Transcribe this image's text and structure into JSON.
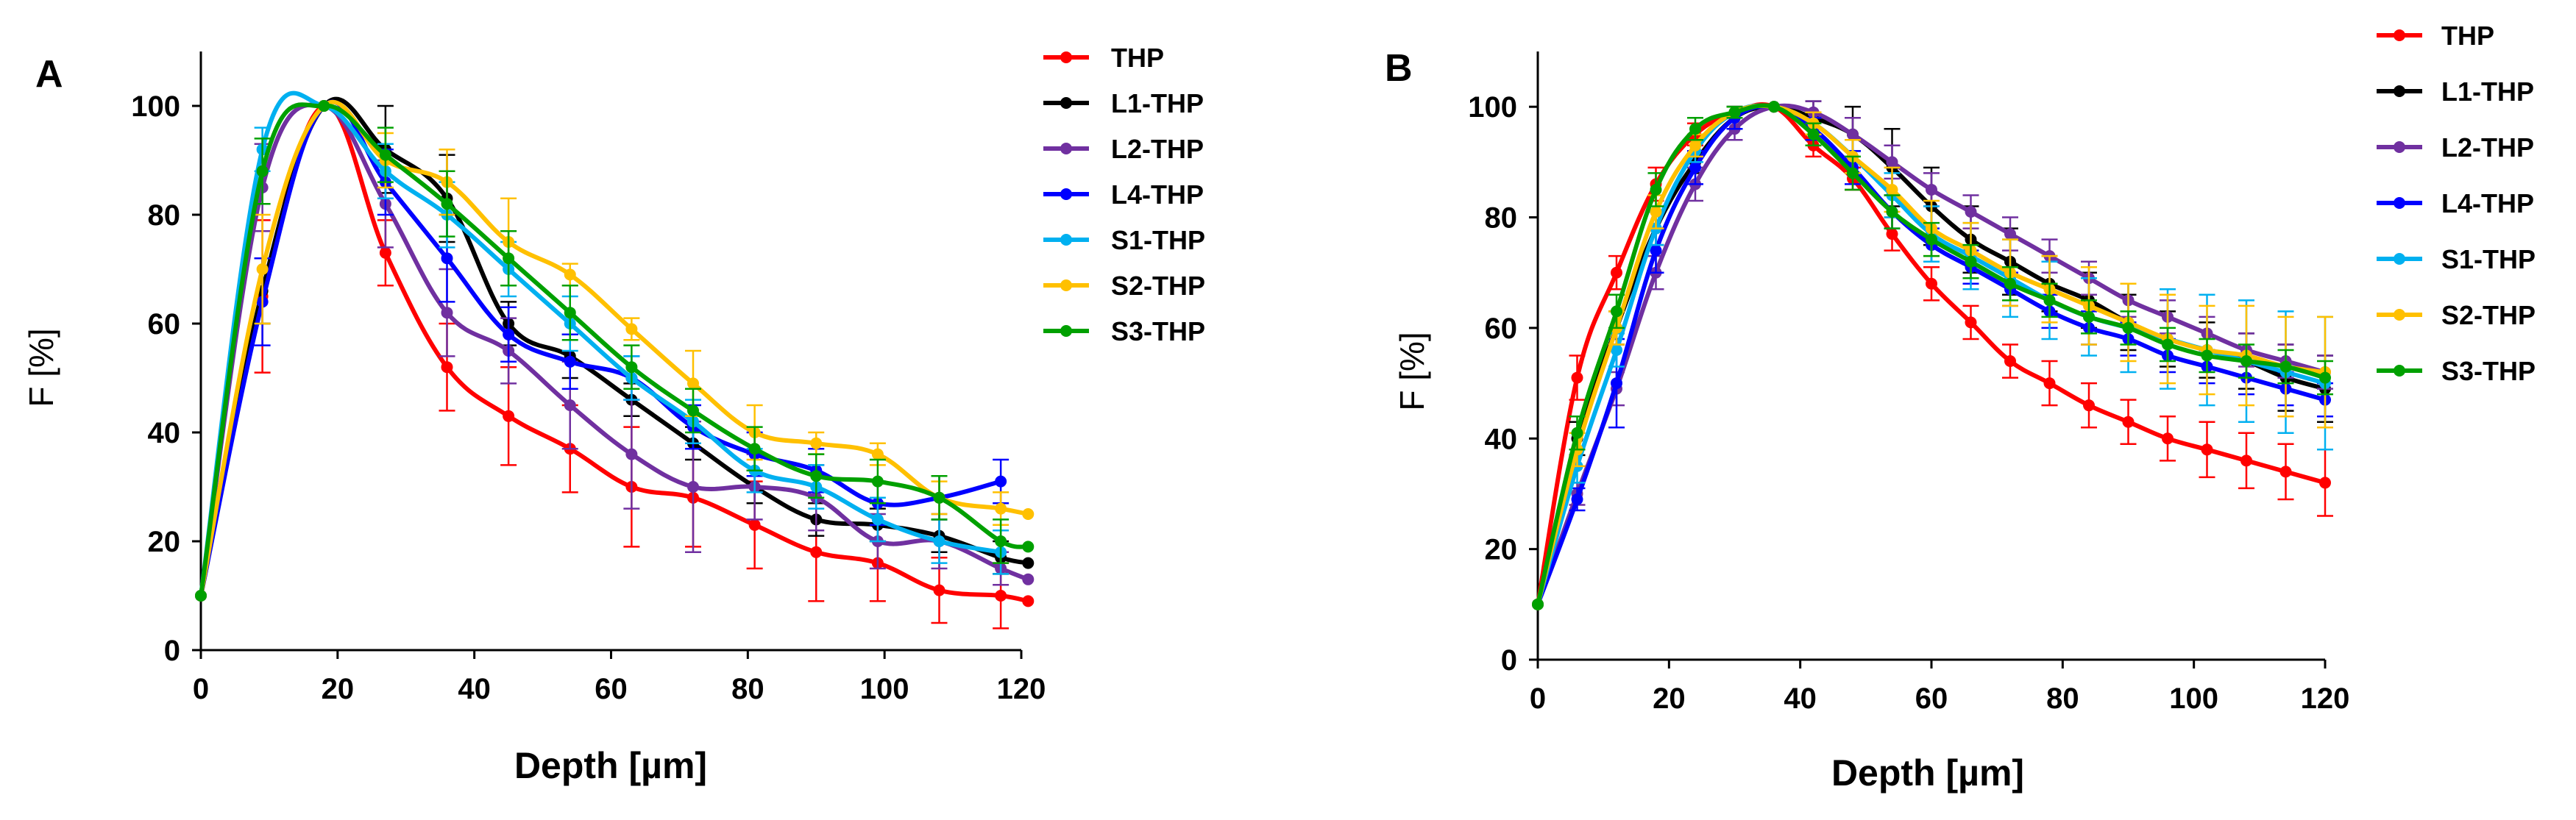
{
  "chart_data": [
    {
      "type": "line",
      "panel_label": "A",
      "xlabel": "Depth [µm]",
      "ylabel": "F [%]",
      "xlim": [
        0,
        120
      ],
      "ylim": [
        0,
        110
      ],
      "x_ticks": [
        "0",
        "20",
        "40",
        "60",
        "80",
        "100",
        "120"
      ],
      "y_ticks": [
        "0",
        "20",
        "40",
        "60",
        "80",
        "100"
      ],
      "grid": false,
      "legend_position": "right",
      "series": [
        {
          "name": "THP",
          "color": "#ff0000",
          "x": [
            0,
            9,
            18,
            27,
            36,
            45,
            54,
            63,
            72,
            81,
            90,
            99,
            108,
            117,
            121
          ],
          "y": [
            10,
            65,
            100,
            73,
            52,
            43,
            37,
            30,
            28,
            23,
            18,
            16,
            11,
            10,
            9
          ],
          "err": [
            0,
            14,
            0,
            6,
            8,
            9,
            8,
            11,
            9,
            8,
            9,
            7,
            6,
            6,
            0
          ]
        },
        {
          "name": "L1-THP",
          "color": "#000000",
          "x": [
            0,
            9,
            18,
            27,
            36,
            45,
            54,
            63,
            72,
            81,
            90,
            99,
            108,
            117,
            121
          ],
          "y": [
            10,
            66,
            100,
            92,
            83,
            60,
            54,
            46,
            38,
            30,
            24,
            23,
            21,
            17,
            16
          ],
          "err": [
            0,
            6,
            0,
            8,
            8,
            4,
            4,
            3,
            3,
            3,
            3,
            3,
            3,
            3,
            0
          ]
        },
        {
          "name": "L2-THP",
          "color": "#7030a0",
          "x": [
            0,
            9,
            18,
            27,
            36,
            45,
            54,
            63,
            72,
            81,
            90,
            99,
            108,
            117,
            121
          ],
          "y": [
            10,
            85,
            100,
            82,
            62,
            55,
            45,
            36,
            30,
            30,
            28,
            20,
            20,
            15,
            13
          ],
          "err": [
            0,
            8,
            0,
            8,
            8,
            6,
            8,
            10,
            12,
            6,
            6,
            5,
            5,
            3,
            0
          ]
        },
        {
          "name": "L4-THP",
          "color": "#0000ff",
          "x": [
            0,
            9,
            18,
            27,
            36,
            45,
            54,
            63,
            72,
            81,
            90,
            99,
            108,
            117
          ],
          "y": [
            10,
            64,
            100,
            86,
            72,
            58,
            53,
            50,
            41,
            36,
            33,
            27,
            28,
            31
          ],
          "err": [
            0,
            8,
            0,
            6,
            8,
            5,
            5,
            4,
            4,
            4,
            4,
            4,
            4,
            4
          ]
        },
        {
          "name": "S1-THP",
          "color": "#00b0f0",
          "x": [
            0,
            9,
            18,
            27,
            36,
            45,
            54,
            63,
            72,
            81,
            90,
            99,
            108,
            117
          ],
          "y": [
            10,
            92,
            100,
            88,
            80,
            70,
            60,
            50,
            42,
            33,
            30,
            24,
            20,
            18
          ],
          "err": [
            0,
            4,
            0,
            5,
            6,
            5,
            5,
            4,
            4,
            4,
            4,
            4,
            4,
            4
          ]
        },
        {
          "name": "S2-THP",
          "color": "#ffc000",
          "x": [
            0,
            9,
            18,
            27,
            36,
            45,
            54,
            63,
            72,
            81,
            90,
            99,
            108,
            117,
            121
          ],
          "y": [
            10,
            70,
            100,
            90,
            86,
            75,
            69,
            59,
            49,
            40,
            38,
            36,
            28,
            26,
            25
          ],
          "err": [
            0,
            10,
            0,
            5,
            6,
            8,
            2,
            2,
            6,
            5,
            2,
            2,
            3,
            3,
            0
          ]
        },
        {
          "name": "S3-THP",
          "color": "#00a000",
          "x": [
            0,
            9,
            18,
            27,
            36,
            45,
            54,
            63,
            72,
            81,
            90,
            99,
            108,
            117,
            121
          ],
          "y": [
            10,
            88,
            100,
            91,
            82,
            72,
            62,
            52,
            44,
            37,
            32,
            31,
            28,
            20,
            19
          ],
          "err": [
            0,
            6,
            0,
            5,
            6,
            5,
            5,
            4,
            4,
            4,
            4,
            4,
            4,
            4,
            0
          ]
        }
      ]
    },
    {
      "type": "line",
      "panel_label": "B",
      "xlabel": "Depth [µm]",
      "ylabel": "F [%]",
      "xlim": [
        0,
        120
      ],
      "ylim": [
        0,
        110
      ],
      "x_ticks": [
        "0",
        "20",
        "40",
        "60",
        "80",
        "100",
        "120"
      ],
      "y_ticks": [
        "0",
        "20",
        "40",
        "60",
        "80",
        "100"
      ],
      "grid": false,
      "legend_position": "right",
      "series": [
        {
          "name": "THP",
          "color": "#ff0000",
          "x": [
            0,
            6,
            12,
            18,
            24,
            30,
            36,
            42,
            48,
            54,
            60,
            66,
            72,
            78,
            84,
            90,
            96,
            102,
            108,
            114,
            120
          ],
          "y": [
            10,
            51,
            70,
            86,
            95,
            99,
            100,
            93,
            87,
            77,
            68,
            61,
            54,
            50,
            46,
            43,
            40,
            38,
            36,
            34,
            32
          ],
          "err": [
            0,
            4,
            3,
            3,
            2,
            1,
            0,
            2,
            2,
            3,
            3,
            3,
            3,
            4,
            4,
            4,
            4,
            5,
            5,
            5,
            6
          ]
        },
        {
          "name": "L1-THP",
          "color": "#000000",
          "x": [
            0,
            6,
            12,
            18,
            24,
            30,
            36,
            42,
            48,
            54,
            60,
            66,
            72,
            78,
            84,
            90,
            96,
            102,
            108,
            114,
            120
          ],
          "y": [
            10,
            40,
            60,
            78,
            90,
            98,
            100,
            98,
            95,
            89,
            82,
            76,
            72,
            68,
            65,
            61,
            58,
            56,
            54,
            51,
            49
          ],
          "err": [
            0,
            3,
            3,
            3,
            2,
            2,
            0,
            3,
            5,
            7,
            7,
            6,
            6,
            5,
            5,
            5,
            5,
            5,
            5,
            6,
            6
          ]
        },
        {
          "name": "L2-THP",
          "color": "#7030a0",
          "x": [
            0,
            6,
            12,
            18,
            24,
            30,
            36,
            42,
            48,
            54,
            60,
            66,
            72,
            78,
            84,
            90,
            96,
            102,
            108,
            114,
            120
          ],
          "y": [
            10,
            30,
            49,
            70,
            86,
            96,
            100,
            99,
            95,
            90,
            85,
            81,
            77,
            73,
            69,
            65,
            62,
            59,
            56,
            54,
            52
          ],
          "err": [
            0,
            2,
            3,
            3,
            3,
            2,
            0,
            2,
            3,
            3,
            3,
            3,
            3,
            3,
            3,
            3,
            3,
            3,
            3,
            3,
            3
          ]
        },
        {
          "name": "L4-THP",
          "color": "#0000ff",
          "x": [
            0,
            6,
            12,
            18,
            24,
            30,
            36,
            42,
            48,
            54,
            60,
            66,
            72,
            78,
            84,
            90,
            96,
            102,
            108,
            114,
            120
          ],
          "y": [
            10,
            29,
            50,
            74,
            89,
            98,
            100,
            96,
            89,
            81,
            75,
            71,
            67,
            63,
            60,
            58,
            55,
            53,
            51,
            49,
            47
          ],
          "err": [
            0,
            2,
            8,
            4,
            3,
            2,
            0,
            2,
            3,
            3,
            3,
            3,
            3,
            3,
            3,
            3,
            3,
            3,
            3,
            3,
            3
          ]
        },
        {
          "name": "S1-THP",
          "color": "#00b0f0",
          "x": [
            0,
            6,
            12,
            18,
            24,
            30,
            36,
            42,
            48,
            54,
            60,
            66,
            72,
            78,
            84,
            90,
            96,
            102,
            108,
            114,
            120
          ],
          "y": [
            10,
            35,
            56,
            78,
            92,
            99,
            100,
            97,
            91,
            84,
            77,
            73,
            69,
            65,
            62,
            60,
            58,
            56,
            54,
            52,
            50
          ],
          "err": [
            0,
            3,
            3,
            3,
            2,
            1,
            0,
            2,
            3,
            4,
            5,
            6,
            7,
            7,
            7,
            8,
            9,
            10,
            11,
            11,
            12
          ]
        },
        {
          "name": "S2-THP",
          "color": "#ffc000",
          "x": [
            0,
            6,
            12,
            18,
            24,
            30,
            36,
            42,
            48,
            54,
            60,
            66,
            72,
            78,
            84,
            90,
            96,
            102,
            108,
            114,
            120
          ],
          "y": [
            10,
            38,
            60,
            81,
            93,
            99,
            100,
            97,
            91,
            85,
            78,
            74,
            70,
            67,
            64,
            61,
            58,
            56,
            55,
            53,
            52
          ],
          "err": [
            0,
            3,
            3,
            3,
            2,
            1,
            0,
            2,
            3,
            4,
            5,
            5,
            6,
            6,
            7,
            7,
            8,
            8,
            9,
            9,
            10
          ]
        },
        {
          "name": "S3-THP",
          "color": "#00a000",
          "x": [
            0,
            6,
            12,
            18,
            24,
            30,
            36,
            42,
            48,
            54,
            60,
            66,
            72,
            78,
            84,
            90,
            96,
            102,
            108,
            114,
            120
          ],
          "y": [
            10,
            41,
            63,
            85,
            96,
            99,
            100,
            95,
            88,
            81,
            76,
            72,
            68,
            65,
            62,
            60,
            57,
            55,
            54,
            53,
            51
          ],
          "err": [
            0,
            3,
            3,
            3,
            2,
            1,
            0,
            2,
            3,
            3,
            3,
            3,
            3,
            3,
            3,
            3,
            3,
            3,
            3,
            3,
            3
          ]
        }
      ]
    }
  ]
}
